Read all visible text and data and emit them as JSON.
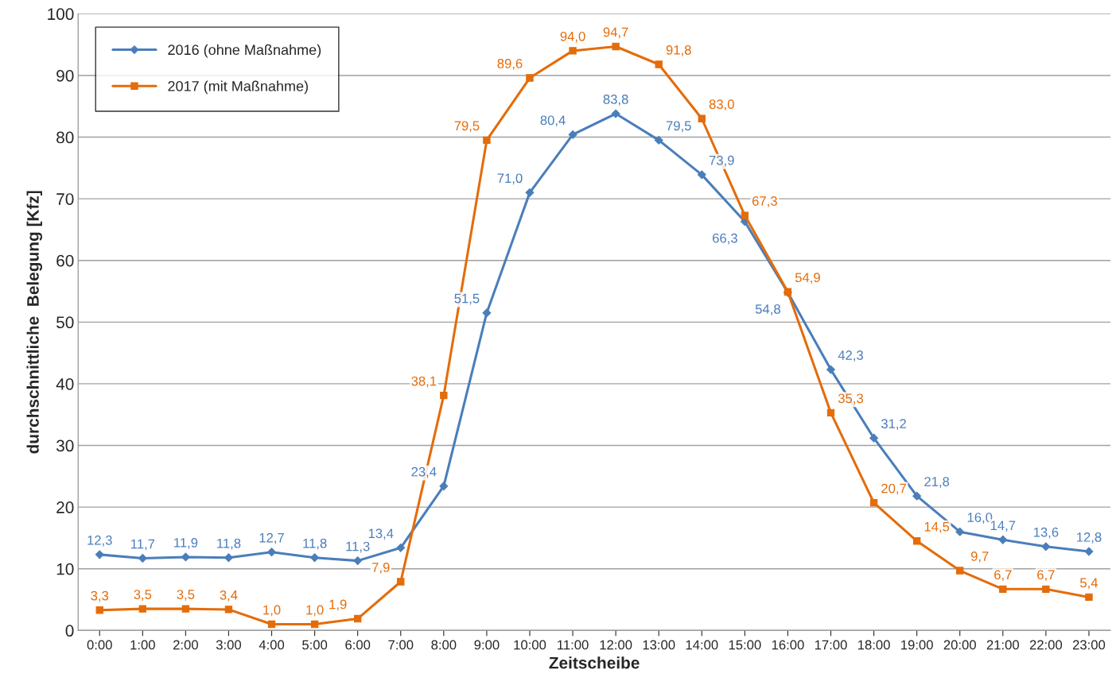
{
  "chart_data": {
    "type": "line",
    "xlabel": "Zeitscheibe",
    "ylabel": "durchschnittliche  Belegung [Kfz]",
    "categories": [
      "0:00",
      "1:00",
      "2:00",
      "3:00",
      "4:00",
      "5:00",
      "6:00",
      "7:00",
      "8:00",
      "9:00",
      "10:00",
      "11:00",
      "12:00",
      "13:00",
      "14:00",
      "15:00",
      "16:00",
      "17:00",
      "18:00",
      "19:00",
      "20:00",
      "21:00",
      "22:00",
      "23:00"
    ],
    "series": [
      {
        "name": "2016 (ohne Maßnahme)",
        "color": "#4a7ebb",
        "marker": "diamond",
        "values": [
          12.3,
          11.7,
          11.9,
          11.8,
          12.7,
          11.8,
          11.3,
          13.4,
          23.4,
          51.5,
          71.0,
          80.4,
          83.8,
          79.5,
          73.9,
          66.3,
          54.8,
          42.3,
          31.2,
          21.8,
          16.0,
          14.7,
          13.6,
          12.8
        ],
        "value_labels": [
          "12,3",
          "11,7",
          "11,9",
          "11,8",
          "12,7",
          "11,8",
          "11,3",
          "13,4",
          "23,4",
          "51,5",
          "71,0",
          "80,4",
          "83,8",
          "79,5",
          "73,9",
          "66,3",
          "54,8",
          "42,3",
          "31,2",
          "21,8",
          "16,0",
          "14,7",
          "13,6",
          "12,8"
        ]
      },
      {
        "name": "2017 (mit Maßnahme)",
        "color": "#e46c0a",
        "marker": "square",
        "values": [
          3.3,
          3.5,
          3.5,
          3.4,
          1.0,
          1.0,
          1.9,
          7.9,
          38.1,
          79.5,
          89.6,
          94.0,
          94.7,
          91.8,
          83.0,
          67.3,
          54.9,
          35.3,
          20.7,
          14.5,
          9.7,
          6.7,
          6.7,
          5.4
        ],
        "value_labels": [
          "3,3",
          "3,5",
          "3,5",
          "3,4",
          "1,0",
          "1,0",
          "1,9",
          "7,9",
          "38,1",
          "79,5",
          "89,6",
          "94,0",
          "94,7",
          "91,8",
          "83,0",
          "67,3",
          "54,9",
          "35,3",
          "20,7",
          "14,5",
          "9,7",
          "6,7",
          "6,7",
          "5,4"
        ]
      }
    ],
    "ylim": [
      0,
      100
    ],
    "yticks": [
      0,
      10,
      20,
      30,
      40,
      50,
      60,
      70,
      80,
      90,
      100
    ],
    "grid": "y",
    "legend": "top left",
    "line_style": "solid"
  }
}
